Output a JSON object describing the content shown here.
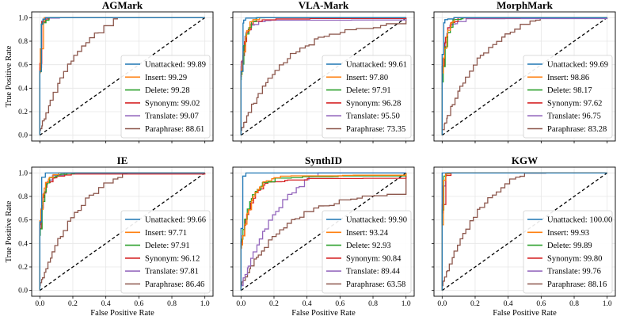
{
  "chart_data": [
    {
      "type": "line",
      "title": "AGMark",
      "xlabel": "",
      "ylabel": "True Positive Rate",
      "xlim": [
        0,
        1
      ],
      "ylim": [
        0,
        1
      ],
      "series": [
        {
          "name": "Unattacked",
          "auc": "99.89",
          "color": "#1f77b4"
        },
        {
          "name": "Insert",
          "auc": "99.29",
          "color": "#ff7f0e"
        },
        {
          "name": "Delete",
          "auc": "99.28",
          "color": "#2ca02c"
        },
        {
          "name": "Synonym",
          "auc": "99.02",
          "color": "#d62728"
        },
        {
          "name": "Translate",
          "auc": "99.07",
          "color": "#9467bd"
        },
        {
          "name": "Paraphrase",
          "auc": "88.61",
          "color": "#8c564b"
        }
      ]
    },
    {
      "type": "line",
      "title": "VLA-Mark",
      "xlabel": "",
      "ylabel": "",
      "xlim": [
        0,
        1
      ],
      "ylim": [
        0,
        1
      ],
      "series": [
        {
          "name": "Unattacked",
          "auc": "99.61",
          "color": "#1f77b4"
        },
        {
          "name": "Insert",
          "auc": "97.80",
          "color": "#ff7f0e"
        },
        {
          "name": "Delete",
          "auc": "97.91",
          "color": "#2ca02c"
        },
        {
          "name": "Synonym",
          "auc": "96.28",
          "color": "#d62728"
        },
        {
          "name": "Translate",
          "auc": "95.50",
          "color": "#9467bd"
        },
        {
          "name": "Paraphrase",
          "auc": "73.35",
          "color": "#8c564b"
        }
      ]
    },
    {
      "type": "line",
      "title": "MorphMark",
      "xlabel": "",
      "ylabel": "",
      "xlim": [
        0,
        1
      ],
      "ylim": [
        0,
        1
      ],
      "series": [
        {
          "name": "Unattacked",
          "auc": "99.69",
          "color": "#1f77b4"
        },
        {
          "name": "Insert",
          "auc": "98.86",
          "color": "#ff7f0e"
        },
        {
          "name": "Delete",
          "auc": "98.17",
          "color": "#2ca02c"
        },
        {
          "name": "Synonym",
          "auc": "97.62",
          "color": "#d62728"
        },
        {
          "name": "Translate",
          "auc": "96.75",
          "color": "#9467bd"
        },
        {
          "name": "Paraphrase",
          "auc": "83.28",
          "color": "#8c564b"
        }
      ]
    },
    {
      "type": "line",
      "title": "IE",
      "xlabel": "False Positive Rate",
      "ylabel": "True Positive Rate",
      "xlim": [
        0,
        1
      ],
      "ylim": [
        0,
        1
      ],
      "series": [
        {
          "name": "Unattacked",
          "auc": "99.66",
          "color": "#1f77b4"
        },
        {
          "name": "Insert",
          "auc": "97.71",
          "color": "#ff7f0e"
        },
        {
          "name": "Delete",
          "auc": "97.91",
          "color": "#2ca02c"
        },
        {
          "name": "Synonym",
          "auc": "96.12",
          "color": "#d62728"
        },
        {
          "name": "Translate",
          "auc": "97.81",
          "color": "#9467bd"
        },
        {
          "name": "Paraphrase",
          "auc": "86.46",
          "color": "#8c564b"
        }
      ]
    },
    {
      "type": "line",
      "title": "SynthID",
      "xlabel": "False Positive Rate",
      "ylabel": "",
      "xlim": [
        0,
        1
      ],
      "ylim": [
        0,
        1
      ],
      "series": [
        {
          "name": "Unattacked",
          "auc": "99.90",
          "color": "#1f77b4"
        },
        {
          "name": "Insert",
          "auc": "93.24",
          "color": "#ff7f0e"
        },
        {
          "name": "Delete",
          "auc": "92.93",
          "color": "#2ca02c"
        },
        {
          "name": "Synonym",
          "auc": "90.84",
          "color": "#d62728"
        },
        {
          "name": "Translate",
          "auc": "89.44",
          "color": "#9467bd"
        },
        {
          "name": "Paraphrase",
          "auc": "63.58",
          "color": "#8c564b"
        }
      ]
    },
    {
      "type": "line",
      "title": "KGW",
      "xlabel": "False Positive Rate",
      "ylabel": "",
      "xlim": [
        0,
        1
      ],
      "ylim": [
        0,
        1
      ],
      "series": [
        {
          "name": "Unattacked",
          "auc": "100.00",
          "color": "#1f77b4"
        },
        {
          "name": "Insert",
          "auc": "99.93",
          "color": "#ff7f0e"
        },
        {
          "name": "Delete",
          "auc": "99.89",
          "color": "#2ca02c"
        },
        {
          "name": "Synonym",
          "auc": "99.80",
          "color": "#d62728"
        },
        {
          "name": "Translate",
          "auc": "99.76",
          "color": "#9467bd"
        },
        {
          "name": "Paraphrase",
          "auc": "88.16",
          "color": "#8c564b"
        }
      ]
    }
  ],
  "axes_ticks": [
    "0.0",
    "0.2",
    "0.4",
    "0.6",
    "0.8",
    "1.0"
  ],
  "reference_line": "random-chance diagonal",
  "legend_placement": "lower-right"
}
